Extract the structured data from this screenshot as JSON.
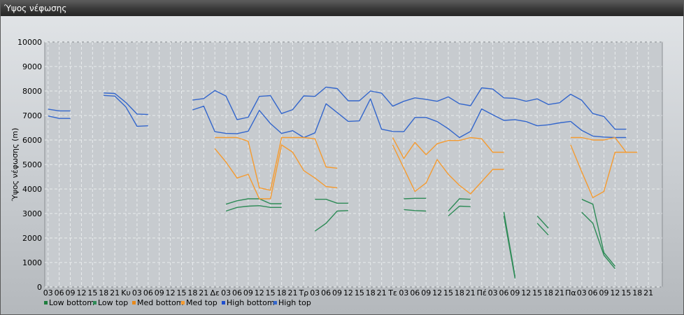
{
  "window": {
    "title": "Ύψος νέφωσης"
  },
  "chart_data": {
    "type": "line",
    "title": "",
    "ylabel": "Ύψος νέφωσης (m)",
    "xlabel": "",
    "ylim": [
      0,
      10000
    ],
    "yticks": [
      0,
      1000,
      2000,
      3000,
      4000,
      5000,
      6000,
      7000,
      8000,
      9000,
      10000
    ],
    "grid": true,
    "legend_position": "bottom-left",
    "x_tick_labels": [
      "03",
      "06",
      "09",
      "12",
      "15",
      "18",
      "21",
      "Κυ",
      "03",
      "06",
      "09",
      "12",
      "15",
      "18",
      "21",
      "Δε",
      "03",
      "06",
      "09",
      "12",
      "15",
      "18",
      "21",
      "Τρ",
      "03",
      "06",
      "09",
      "12",
      "15",
      "18",
      "21",
      "Τε",
      "03",
      "06",
      "09",
      "12",
      "15",
      "18",
      "21",
      "Πέ",
      "03",
      "06",
      "09",
      "12",
      "15",
      "18",
      "21",
      "Πα",
      "03",
      "06",
      "09",
      "12",
      "15",
      "18",
      "21"
    ],
    "series": [
      {
        "name": "Low bottom",
        "color": "#2e8b57",
        "values": [
          null,
          null,
          null,
          null,
          null,
          null,
          null,
          null,
          null,
          null,
          null,
          null,
          null,
          null,
          null,
          null,
          3100,
          3250,
          3300,
          3320,
          3250,
          3250,
          null,
          null,
          2280,
          2600,
          3100,
          3120,
          null,
          null,
          null,
          null,
          3160,
          3120,
          3100,
          null,
          2900,
          3300,
          3280,
          null,
          null,
          2900,
          350,
          null,
          2600,
          2120,
          null,
          null,
          3050,
          2600,
          1300,
          750,
          null,
          null,
          null,
          null
        ]
      },
      {
        "name": "Low top",
        "color": "#2e8b57",
        "values": [
          null,
          null,
          null,
          null,
          null,
          null,
          null,
          null,
          null,
          null,
          null,
          null,
          null,
          null,
          null,
          null,
          3380,
          3520,
          3600,
          3600,
          3400,
          3400,
          null,
          null,
          3580,
          3580,
          3420,
          3420,
          null,
          null,
          null,
          null,
          3600,
          3620,
          3620,
          null,
          3100,
          3600,
          3580,
          null,
          null,
          3060,
          420,
          null,
          2900,
          2400,
          null,
          null,
          3580,
          3380,
          1400,
          850,
          null,
          null,
          null,
          null
        ]
      },
      {
        "name": "Med bottom",
        "color": "#f59b30",
        "values": [
          null,
          null,
          null,
          null,
          null,
          null,
          null,
          null,
          null,
          null,
          null,
          null,
          null,
          null,
          null,
          null,
          null,
          null,
          null,
          null,
          null,
          null,
          null,
          null,
          null,
          null,
          null,
          null,
          null,
          null,
          null,
          null,
          null,
          null,
          null,
          null,
          null,
          null,
          null,
          null,
          null,
          null,
          null,
          null,
          null,
          null,
          null,
          null,
          null,
          null,
          null,
          null,
          null,
          null,
          null,
          null
        ]
      },
      {
        "name": "Med top",
        "color": "#f59b30",
        "values": [
          null,
          null,
          null,
          null,
          null,
          null,
          null,
          null,
          null,
          null,
          null,
          null,
          null,
          null,
          null,
          null,
          null,
          null,
          null,
          null,
          null,
          null,
          null,
          null,
          null,
          null,
          null,
          null,
          null,
          null,
          null,
          null,
          null,
          null,
          null,
          null,
          null,
          null,
          null,
          null,
          null,
          null,
          null,
          null,
          null,
          null,
          null,
          null,
          null,
          null,
          null,
          null,
          null,
          null,
          null,
          null
        ]
      },
      {
        "name": "High bottom",
        "color": "#3366cc",
        "values": [
          6980,
          6880,
          6880,
          null,
          null,
          7820,
          7790,
          7350,
          6560,
          6580,
          null,
          null,
          null,
          7230,
          7380,
          6340,
          6270,
          6260,
          6360,
          7210,
          6670,
          6270,
          6380,
          6100,
          6290,
          7480,
          7120,
          6760,
          6780,
          7680,
          6440,
          6350,
          6340,
          6920,
          6920,
          6750,
          6460,
          6100,
          6350,
          7270,
          7030,
          6800,
          6830,
          6750,
          6580,
          6620,
          6700,
          6760,
          6390,
          6160,
          6120,
          6100,
          6100,
          null,
          null,
          null
        ]
      },
      {
        "name": "High top",
        "color": "#3366cc",
        "values": [
          7260,
          7190,
          7190,
          null,
          null,
          7920,
          7900,
          7530,
          7060,
          7040,
          null,
          null,
          null,
          7630,
          7690,
          8020,
          7790,
          6830,
          6930,
          7780,
          7810,
          7080,
          7240,
          7800,
          7780,
          8160,
          8100,
          7600,
          7600,
          8000,
          7910,
          7380,
          7580,
          7720,
          7660,
          7580,
          7760,
          7480,
          7400,
          8130,
          8080,
          7720,
          7700,
          7580,
          7680,
          7450,
          7520,
          7870,
          7620,
          7080,
          6960,
          6440,
          6440,
          null,
          null,
          null
        ]
      }
    ],
    "extra_orange_lines": {
      "note_series": [
        "Med bottom",
        "Med top"
      ]
    }
  },
  "legend": [
    {
      "label": "Low bottom",
      "color": "#1e7e3e"
    },
    {
      "label": "Low top",
      "color": "#2e8b57"
    },
    {
      "label": "Med bottom",
      "color": "#e8891a"
    },
    {
      "label": "Med top",
      "color": "#f59b30"
    },
    {
      "label": "High bottom",
      "color": "#1f4fcf"
    },
    {
      "label": "High top",
      "color": "#3366cc"
    }
  ]
}
